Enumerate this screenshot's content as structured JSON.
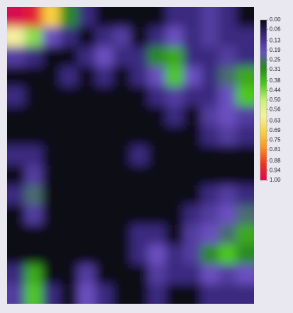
{
  "chart_data": {
    "type": "heatmap",
    "zlim": [
      0,
      1
    ],
    "colorscale": [
      "#0a0a14",
      "#3a2a80",
      "#6a50c0",
      "#2a8a20",
      "#4ec81e",
      "#c8f078",
      "#f6f0a0",
      "#f8d040",
      "#f89020",
      "#f03020",
      "#d80a50"
    ],
    "colorbar_ticks": [
      {
        "value": 0,
        "label": "0.00"
      },
      0.06,
      0.13,
      0.19,
      0.25,
      0.31,
      0.38,
      0.44,
      {
        "value": 0.5,
        "label": "0.50"
      },
      0.56,
      0.63,
      0.69,
      0.75,
      0.81,
      0.88,
      0.94,
      {
        "value": 1,
        "label": "1.00"
      }
    ],
    "z": [
      [
        1,
        0.95,
        0.7,
        0.3,
        0.1,
        0,
        0,
        0,
        0,
        0.1,
        0.1,
        0.15,
        0.1,
        0
      ],
      [
        0.6,
        0.45,
        0.2,
        0.1,
        0,
        0.1,
        0.15,
        0,
        0.1,
        0.2,
        0.1,
        0.15,
        0.1,
        0.1
      ],
      [
        0.15,
        0.1,
        0,
        0,
        0.1,
        0.2,
        0.1,
        0.1,
        0.3,
        0.35,
        0.1,
        0.1,
        0.15,
        0.1
      ],
      [
        0,
        0,
        0,
        0.1,
        0,
        0.1,
        0,
        0.1,
        0.2,
        0.4,
        0.2,
        0.1,
        0.25,
        0.35
      ],
      [
        0.1,
        0,
        0,
        0,
        0,
        0,
        0,
        0,
        0.1,
        0.15,
        0.1,
        0.1,
        0.2,
        0.4
      ],
      [
        0,
        0,
        0,
        0,
        0,
        0,
        0,
        0,
        0,
        0.1,
        0,
        0.15,
        0.2,
        0.15
      ],
      [
        0,
        0,
        0,
        0,
        0,
        0,
        0,
        0,
        0,
        0,
        0,
        0.1,
        0.15,
        0.1
      ],
      [
        0.1,
        0.1,
        0,
        0,
        0,
        0,
        0,
        0.1,
        0,
        0,
        0,
        0,
        0,
        0
      ],
      [
        0,
        0.15,
        0,
        0,
        0,
        0,
        0,
        0,
        0,
        0,
        0,
        0,
        0,
        0
      ],
      [
        0.1,
        0.25,
        0,
        0,
        0,
        0,
        0,
        0,
        0,
        0,
        0,
        0.1,
        0.15,
        0.1
      ],
      [
        0,
        0.15,
        0,
        0,
        0,
        0,
        0,
        0,
        0,
        0,
        0.1,
        0.15,
        0.2,
        0.25
      ],
      [
        0,
        0,
        0,
        0,
        0,
        0,
        0,
        0.1,
        0.1,
        0,
        0.15,
        0.2,
        0.25,
        0.35
      ],
      [
        0,
        0,
        0,
        0,
        0,
        0,
        0,
        0.1,
        0.2,
        0.1,
        0.15,
        0.3,
        0.4,
        0.3
      ],
      [
        0.1,
        0.35,
        0,
        0,
        0.15,
        0,
        0,
        0,
        0.15,
        0.1,
        0.1,
        0.2,
        0.15,
        0.2
      ],
      [
        0.15,
        0.4,
        0.1,
        0,
        0.2,
        0.1,
        0,
        0,
        0.1,
        0,
        0,
        0.1,
        0.1,
        0.1
      ]
    ]
  }
}
